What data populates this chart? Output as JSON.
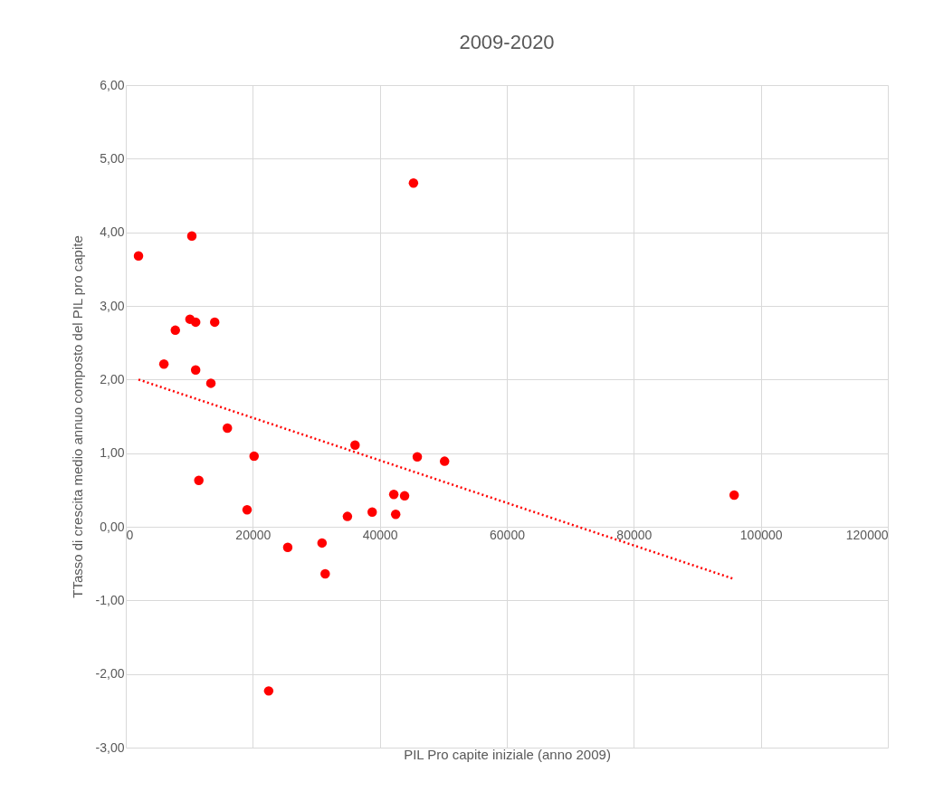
{
  "chart_data": {
    "type": "scatter",
    "title": "2009-2020",
    "xlabel": "PIL Pro capite iniziale (anno 2009)",
    "ylabel": "TTasso di crescita medio annuo composto del PIL pro capite",
    "xlim": [
      0,
      120000
    ],
    "xticks": [
      0,
      20000,
      40000,
      60000,
      80000,
      100000,
      120000
    ],
    "ylim": [
      -3,
      6
    ],
    "yticks": [
      {
        "value": -3,
        "label": "-3,00"
      },
      {
        "value": -2,
        "label": "-2,00"
      },
      {
        "value": -1,
        "label": "-1,00"
      },
      {
        "value": 0,
        "label": "0,00"
      },
      {
        "value": 1,
        "label": "1,00"
      },
      {
        "value": 2,
        "label": "2,00"
      },
      {
        "value": 3,
        "label": "3,00"
      },
      {
        "value": 4,
        "label": "4,00"
      },
      {
        "value": 5,
        "label": "5,00"
      },
      {
        "value": 6,
        "label": "6,00"
      }
    ],
    "grid": true,
    "legend": false,
    "series": [
      {
        "color": "#ff0000",
        "marker": "circle",
        "x": [
          2000,
          10400,
          45300,
          7800,
          10100,
          11000,
          14000,
          6000,
          11000,
          13400,
          16000,
          20200,
          11500,
          19100,
          25500,
          22500,
          30900,
          31400,
          34900,
          36100,
          38800,
          42200,
          42500,
          43900,
          45900,
          50200,
          95800
        ],
        "values": [
          3.68,
          3.95,
          4.67,
          2.67,
          2.82,
          2.78,
          2.78,
          2.21,
          2.13,
          1.95,
          1.34,
          0.96,
          0.63,
          0.23,
          -0.28,
          -2.23,
          -0.22,
          -0.64,
          0.14,
          1.11,
          0.2,
          0.44,
          0.17,
          0.42,
          0.95,
          0.89,
          0.43
        ]
      },
      {
        "type": "line",
        "color": "#ff0000",
        "line_style": "dotted",
        "marker": "none",
        "x": [
          2000,
          95800
        ],
        "values": [
          2.0,
          -0.71
        ]
      }
    ]
  }
}
